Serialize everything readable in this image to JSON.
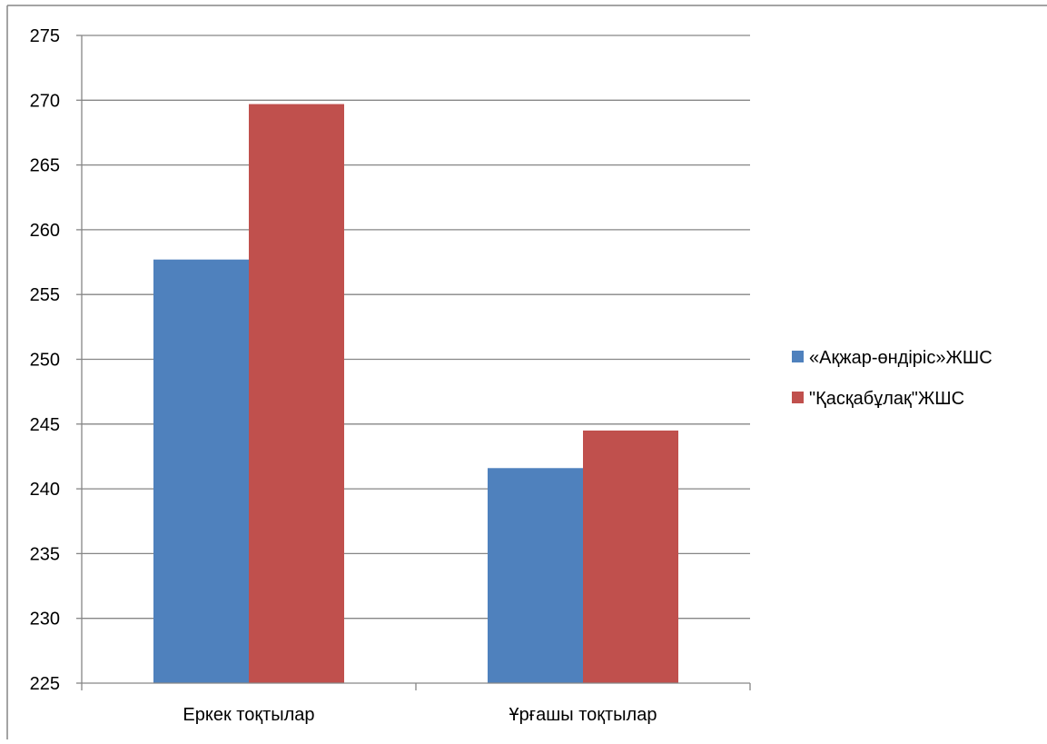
{
  "chart_data": {
    "type": "bar",
    "title": "",
    "xlabel": "",
    "ylabel": "",
    "categories": [
      "Еркек тоқтылар",
      "Ұрғашы тоқтылар"
    ],
    "series": [
      {
        "name": "«Ақжар-өндіріс»ЖШС",
        "values": [
          257.7,
          241.6
        ],
        "color": "#4F81BD"
      },
      {
        "name": "\"Қасқабұлақ\"ЖШС",
        "values": [
          269.7,
          244.5
        ],
        "color": "#C0504D"
      }
    ],
    "ylim": [
      225,
      275
    ],
    "yticks": [
      225,
      230,
      235,
      240,
      245,
      250,
      255,
      260,
      265,
      270,
      275
    ],
    "grid": true,
    "legend_position": "right",
    "gridline_color": "#868686"
  }
}
